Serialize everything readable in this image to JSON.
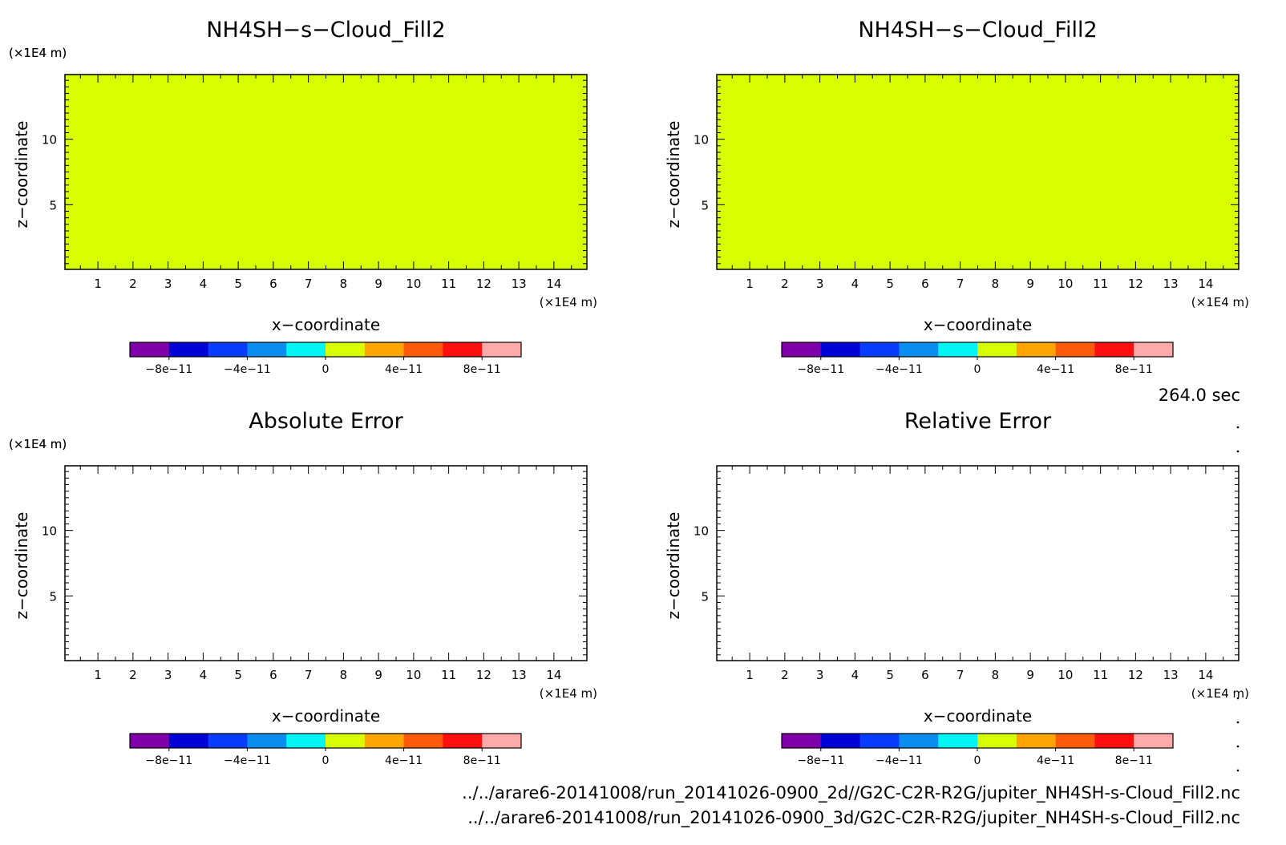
{
  "chart_data": [
    {
      "type": "heatmap",
      "panel": "top-left",
      "title": "NH4SH−s−Cloud_Fill2",
      "xlabel": "x−coordinate",
      "ylabel": "z−coordinate",
      "x_unit": "(×1E4 m)",
      "y_unit": "(×1E4 m)",
      "xlim": [
        0.06,
        14.94
      ],
      "ylim": [
        0.06,
        14.94
      ],
      "x_ticks": [
        1,
        2,
        3,
        4,
        5,
        6,
        7,
        8,
        9,
        10,
        11,
        12,
        13,
        14
      ],
      "y_ticks": [
        5,
        10
      ],
      "field_value": 0,
      "filled": true
    },
    {
      "type": "heatmap",
      "panel": "top-right",
      "title": "NH4SH−s−Cloud_Fill2",
      "xlabel": "x−coordinate",
      "ylabel": "z−coordinate",
      "x_unit": "(×1E4 m)",
      "y_unit": "(×1E4 m)",
      "xlim": [
        0.06,
        14.94
      ],
      "ylim": [
        0.06,
        14.94
      ],
      "x_ticks": [
        1,
        2,
        3,
        4,
        5,
        6,
        7,
        8,
        9,
        10,
        11,
        12,
        13,
        14
      ],
      "y_ticks": [
        5,
        10
      ],
      "field_value": 0,
      "filled": true
    },
    {
      "type": "heatmap",
      "panel": "bottom-left",
      "title": "Absolute Error",
      "xlabel": "x−coordinate",
      "ylabel": "z−coordinate",
      "x_unit": "(×1E4 m)",
      "y_unit": "(×1E4 m)",
      "xlim": [
        0.06,
        14.94
      ],
      "ylim": [
        0.06,
        14.94
      ],
      "x_ticks": [
        1,
        2,
        3,
        4,
        5,
        6,
        7,
        8,
        9,
        10,
        11,
        12,
        13,
        14
      ],
      "y_ticks": [
        5,
        10
      ],
      "field_value": null,
      "filled": false
    },
    {
      "type": "heatmap",
      "panel": "bottom-right",
      "title": "Relative Error",
      "xlabel": "x−coordinate",
      "ylabel": "z−coordinate",
      "x_unit": "(×1E4 m)",
      "y_unit": "(×1E4 m)",
      "xlim": [
        0.06,
        14.94
      ],
      "ylim": [
        0.06,
        14.94
      ],
      "x_ticks": [
        1,
        2,
        3,
        4,
        5,
        6,
        7,
        8,
        9,
        10,
        11,
        12,
        13,
        14
      ],
      "y_ticks": [
        5,
        10
      ],
      "field_value": null,
      "filled": false
    }
  ],
  "colorbar": {
    "min": -1e-10,
    "max": 1e-10,
    "colors": [
      "#7e00a8",
      "#0000d2",
      "#0a3cff",
      "#0a8cf0",
      "#00f5f5",
      "#d7ff00",
      "#ffa500",
      "#ff5a0a",
      "#ff0f0f",
      "#ffaaaa"
    ],
    "tick_values": [
      -8e-11,
      -4e-11,
      0,
      4e-11,
      8e-11
    ],
    "tick_labels": [
      "−8e−11",
      "−4e−11",
      "0",
      "4e−11",
      "8e−11"
    ]
  },
  "time_label": "264.0 sec",
  "footer": {
    "line1": "../../arare6-20141008/run_20141026-0900_2d//G2C-C2R-R2G/jupiter_NH4SH-s-Cloud_Fill2.nc",
    "line2": "../../arare6-20141008/run_20141026-0900_3d/G2C-C2R-R2G/jupiter_NH4SH-s-Cloud_Fill2.nc"
  }
}
